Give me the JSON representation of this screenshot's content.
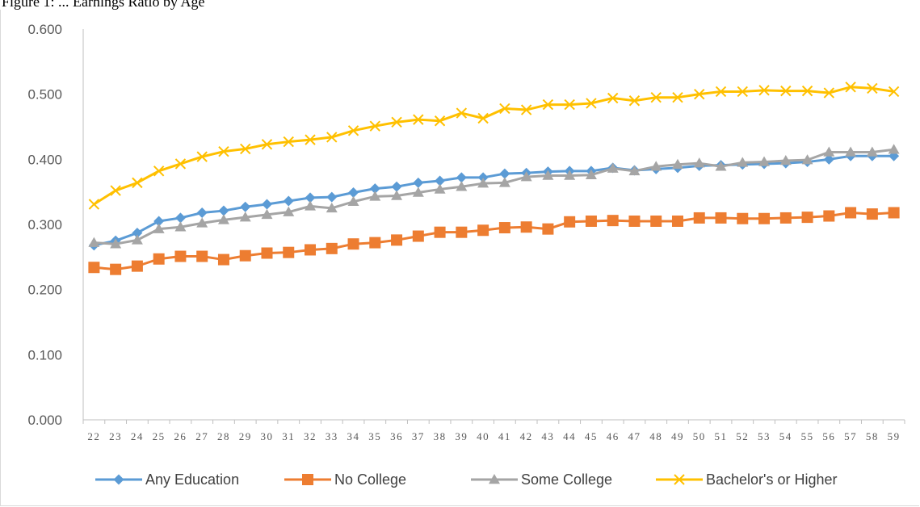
{
  "caption": "Figure 1: ... Earnings Ratio by Age",
  "chart_data": {
    "type": "line",
    "title": "",
    "xlabel": "",
    "ylabel": "",
    "ylim": [
      0,
      0.6
    ],
    "yticks": [
      "0.000",
      "0.100",
      "0.200",
      "0.300",
      "0.400",
      "0.500",
      "0.600"
    ],
    "x": [
      "22",
      "23",
      "24",
      "25",
      "26",
      "27",
      "28",
      "29",
      "30",
      "31",
      "32",
      "33",
      "34",
      "35",
      "36",
      "37",
      "38",
      "39",
      "40",
      "41",
      "42",
      "43",
      "44",
      "45",
      "46",
      "47",
      "48",
      "49",
      "50",
      "51",
      "52",
      "53",
      "54",
      "55",
      "56",
      "57",
      "58",
      "59"
    ],
    "legend_position": "bottom",
    "series": [
      {
        "name": "Any Education",
        "color": "#5B9BD5",
        "marker": "diamond",
        "values": [
          0.268,
          0.275,
          0.287,
          0.305,
          0.31,
          0.318,
          0.321,
          0.327,
          0.331,
          0.336,
          0.341,
          0.342,
          0.349,
          0.355,
          0.358,
          0.364,
          0.367,
          0.372,
          0.372,
          0.378,
          0.379,
          0.381,
          0.382,
          0.382,
          0.387,
          0.383,
          0.385,
          0.387,
          0.39,
          0.391,
          0.392,
          0.393,
          0.394,
          0.396,
          0.4,
          0.405,
          0.405,
          0.405
        ]
      },
      {
        "name": "No College",
        "color": "#ED7D31",
        "marker": "square",
        "values": [
          0.234,
          0.231,
          0.236,
          0.247,
          0.251,
          0.251,
          0.246,
          0.252,
          0.256,
          0.257,
          0.261,
          0.263,
          0.27,
          0.272,
          0.276,
          0.282,
          0.288,
          0.288,
          0.291,
          0.295,
          0.296,
          0.293,
          0.304,
          0.305,
          0.306,
          0.305,
          0.305,
          0.305,
          0.31,
          0.31,
          0.309,
          0.309,
          0.31,
          0.311,
          0.313,
          0.318,
          0.316,
          0.318
        ]
      },
      {
        "name": "Some College",
        "color": "#A5A5A5",
        "marker": "triangle",
        "values": [
          0.272,
          0.27,
          0.276,
          0.293,
          0.296,
          0.302,
          0.307,
          0.311,
          0.315,
          0.319,
          0.328,
          0.325,
          0.335,
          0.343,
          0.344,
          0.349,
          0.354,
          0.358,
          0.363,
          0.364,
          0.373,
          0.375,
          0.375,
          0.376,
          0.386,
          0.382,
          0.389,
          0.392,
          0.394,
          0.389,
          0.395,
          0.396,
          0.398,
          0.399,
          0.411,
          0.411,
          0.411,
          0.415
        ]
      },
      {
        "name": "Bachelor's or Higher",
        "color": "#FFC000",
        "marker": "x",
        "values": [
          0.331,
          0.352,
          0.364,
          0.382,
          0.393,
          0.404,
          0.412,
          0.416,
          0.423,
          0.427,
          0.43,
          0.434,
          0.444,
          0.451,
          0.457,
          0.461,
          0.459,
          0.471,
          0.463,
          0.478,
          0.476,
          0.484,
          0.484,
          0.486,
          0.494,
          0.49,
          0.495,
          0.495,
          0.5,
          0.504,
          0.504,
          0.506,
          0.505,
          0.505,
          0.502,
          0.511,
          0.509,
          0.504
        ]
      }
    ]
  }
}
